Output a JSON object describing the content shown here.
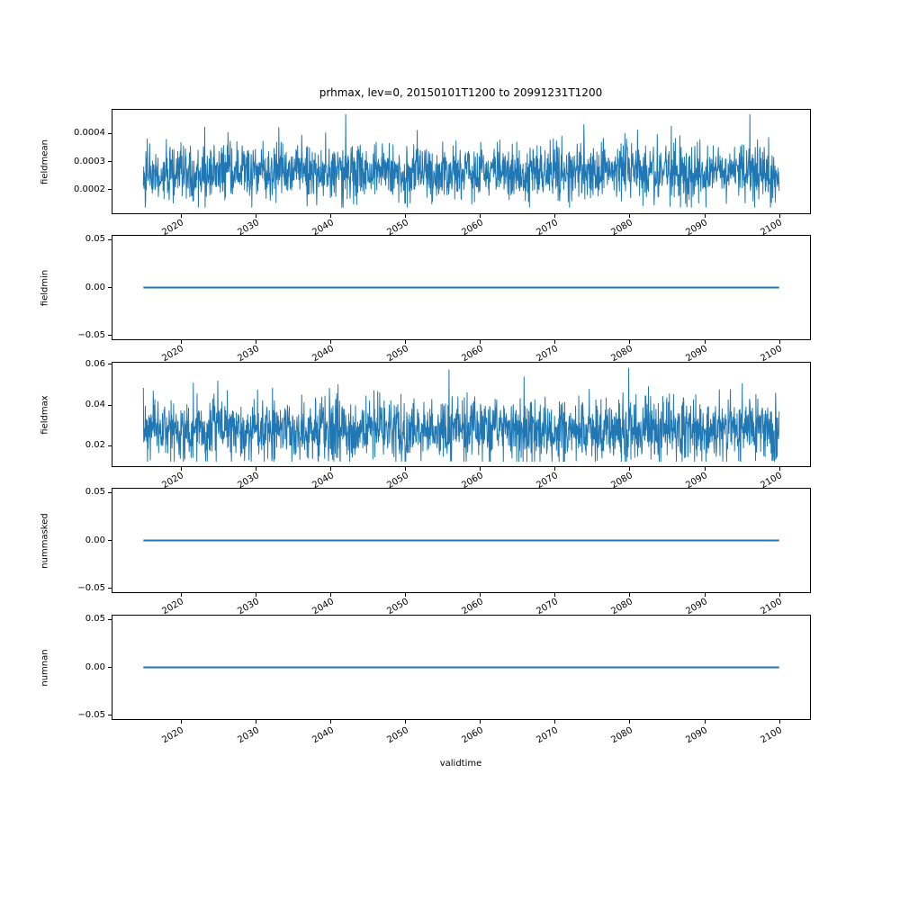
{
  "figure": {
    "background": "#ffffff",
    "frame_color": "#000000"
  },
  "chart_data": {
    "type": "line",
    "title": "prhmax, lev=0, 20150101T1200 to 20991231T1200",
    "xlabel": "validtime",
    "grid": false,
    "legend": "none",
    "line_color": "#1f77b4",
    "xlim": [
      2010.75,
      2104.25
    ],
    "x_data_range": [
      2015.0,
      2100.0
    ],
    "x_ticks": [
      2020,
      2030,
      2040,
      2050,
      2060,
      2070,
      2080,
      2090,
      2100
    ],
    "x_tick_labels": [
      "2020",
      "2030",
      "2040",
      "2050",
      "2060",
      "2070",
      "2080",
      "2090",
      "2100"
    ],
    "x_tick_rotation_deg": 30,
    "subplots": [
      {
        "ylabel": "fieldmean",
        "yticks": [
          0.0004,
          0.0003,
          0.0002
        ],
        "ytick_labels": [
          "0.0004",
          "0.0003",
          "0.0002"
        ],
        "ylim": [
          0.000113,
          0.000487
        ],
        "series": {
          "kind": "noise",
          "mean": 0.00026,
          "std": 5e-05,
          "min": 0.000135,
          "max": 0.00047,
          "n": 2000,
          "seed": 42,
          "spike_prob": 0.03,
          "spike_scale": 1.8,
          "stroke_width": 1
        }
      },
      {
        "ylabel": "fieldmin",
        "yticks": [
          0.05,
          0.0,
          -0.05
        ],
        "ytick_labels": [
          "0.05",
          "0.00",
          "−0.05"
        ],
        "ylim": [
          -0.055,
          0.055
        ],
        "series": {
          "kind": "constant",
          "value": 0.0,
          "stroke_width": 2
        }
      },
      {
        "ylabel": "fieldmax",
        "yticks": [
          0.06,
          0.04,
          0.02
        ],
        "ytick_labels": [
          "0.06",
          "0.04",
          "0.02"
        ],
        "ylim": [
          0.0096,
          0.0613
        ],
        "series": {
          "kind": "noise",
          "mean": 0.028,
          "std": 0.0075,
          "min": 0.012,
          "max": 0.0585,
          "n": 2000,
          "seed": 7,
          "spike_prob": 0.03,
          "spike_scale": 1.7,
          "stroke_width": 1
        }
      },
      {
        "ylabel": "nummasked",
        "yticks": [
          0.05,
          0.0,
          -0.05
        ],
        "ytick_labels": [
          "0.05",
          "0.00",
          "−0.05"
        ],
        "ylim": [
          -0.055,
          0.055
        ],
        "series": {
          "kind": "constant",
          "value": 0.0,
          "stroke_width": 2
        }
      },
      {
        "ylabel": "numnan",
        "yticks": [
          0.05,
          0.0,
          -0.05
        ],
        "ytick_labels": [
          "0.05",
          "0.00",
          "−0.05"
        ],
        "ylim": [
          -0.055,
          0.055
        ],
        "series": {
          "kind": "constant",
          "value": 0.0,
          "stroke_width": 2
        }
      }
    ]
  }
}
